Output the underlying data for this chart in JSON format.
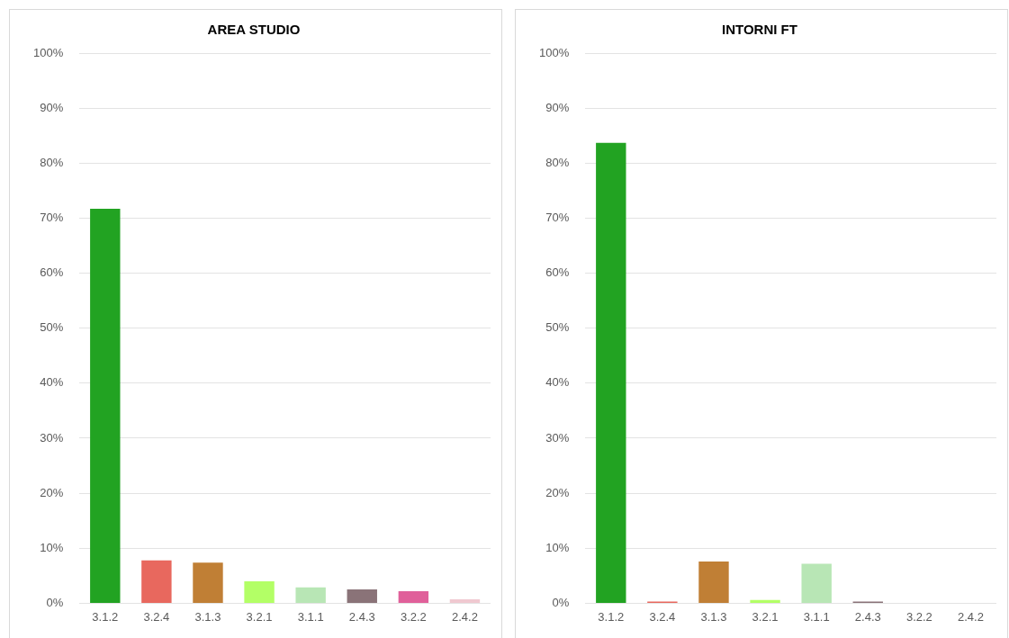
{
  "chart_data": [
    {
      "type": "bar",
      "title": "AREA STUDIO",
      "categories": [
        "3.1.2",
        "3.2.4",
        "3.1.3",
        "3.2.1",
        "3.1.1",
        "2.4.3",
        "3.2.2",
        "2.4.2"
      ],
      "values": [
        71.7,
        7.8,
        7.4,
        4.0,
        2.9,
        2.5,
        2.2,
        0.7
      ],
      "colors": [
        "#22a322",
        "#e8685e",
        "#c07f35",
        "#b3ff66",
        "#b8e6b5",
        "#8a7378",
        "#e0609a",
        "#f0c8d0"
      ],
      "ylim": [
        0,
        100
      ],
      "yticks": [
        {
          "value": 0,
          "label": "0%"
        },
        {
          "value": 10,
          "label": "10%"
        },
        {
          "value": 20,
          "label": "20%"
        },
        {
          "value": 30,
          "label": "30%"
        },
        {
          "value": 40,
          "label": "40%"
        },
        {
          "value": 50,
          "label": "50%"
        },
        {
          "value": 60,
          "label": "60%"
        },
        {
          "value": 70,
          "label": "70%"
        },
        {
          "value": 80,
          "label": "80%"
        },
        {
          "value": 90,
          "label": "90%"
        },
        {
          "value": 100,
          "label": "100%"
        }
      ],
      "grid": "y",
      "legend": false
    },
    {
      "type": "bar",
      "title": "INTORNI FT",
      "categories": [
        "3.1.2",
        "3.2.4",
        "3.1.3",
        "3.2.1",
        "3.1.1",
        "2.4.3",
        "3.2.2",
        "2.4.2"
      ],
      "values": [
        83.7,
        0.3,
        7.6,
        0.6,
        7.2,
        0.3,
        0,
        0
      ],
      "colors": [
        "#22a322",
        "#e8685e",
        "#c07f35",
        "#b3ff66",
        "#b8e6b5",
        "#8a7378",
        "#e0609a",
        "#f0c8d0"
      ],
      "ylim": [
        0,
        100
      ],
      "yticks": [
        {
          "value": 0,
          "label": "0%"
        },
        {
          "value": 10,
          "label": "10%"
        },
        {
          "value": 20,
          "label": "20%"
        },
        {
          "value": 30,
          "label": "30%"
        },
        {
          "value": 40,
          "label": "40%"
        },
        {
          "value": 50,
          "label": "50%"
        },
        {
          "value": 60,
          "label": "60%"
        },
        {
          "value": 70,
          "label": "70%"
        },
        {
          "value": 80,
          "label": "80%"
        },
        {
          "value": 90,
          "label": "90%"
        },
        {
          "value": 100,
          "label": "100%"
        }
      ],
      "grid": "y",
      "legend": false
    }
  ]
}
